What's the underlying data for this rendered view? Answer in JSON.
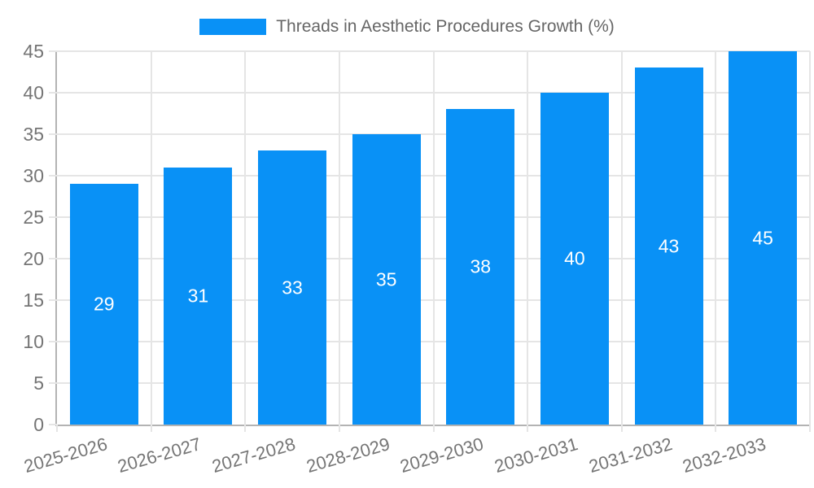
{
  "chart_data": {
    "type": "bar",
    "title": "Threads in Aesthetic Procedures Growth (%)",
    "categories": [
      "2025-2026",
      "2026-2027",
      "2027-2028",
      "2028-2029",
      "2029-2030",
      "2030-2031",
      "2031-2032",
      "2032-2033"
    ],
    "values": [
      29,
      31,
      33,
      35,
      38,
      40,
      43,
      45
    ],
    "xlabel": "",
    "ylabel": "",
    "ylim": [
      0,
      45
    ],
    "ytick_step": 5,
    "yticks": [
      0,
      5,
      10,
      15,
      20,
      25,
      30,
      35,
      40,
      45
    ],
    "grid": true,
    "legend_position": "top-center",
    "bar_value_labels_shown": true,
    "colors": {
      "bar": "#0991f6",
      "bar_value_label": "#ffffff",
      "grid": "#e5e5e5",
      "axis": "#b3b3b3",
      "tick_text": "#757575",
      "title_text": "#666666"
    }
  }
}
